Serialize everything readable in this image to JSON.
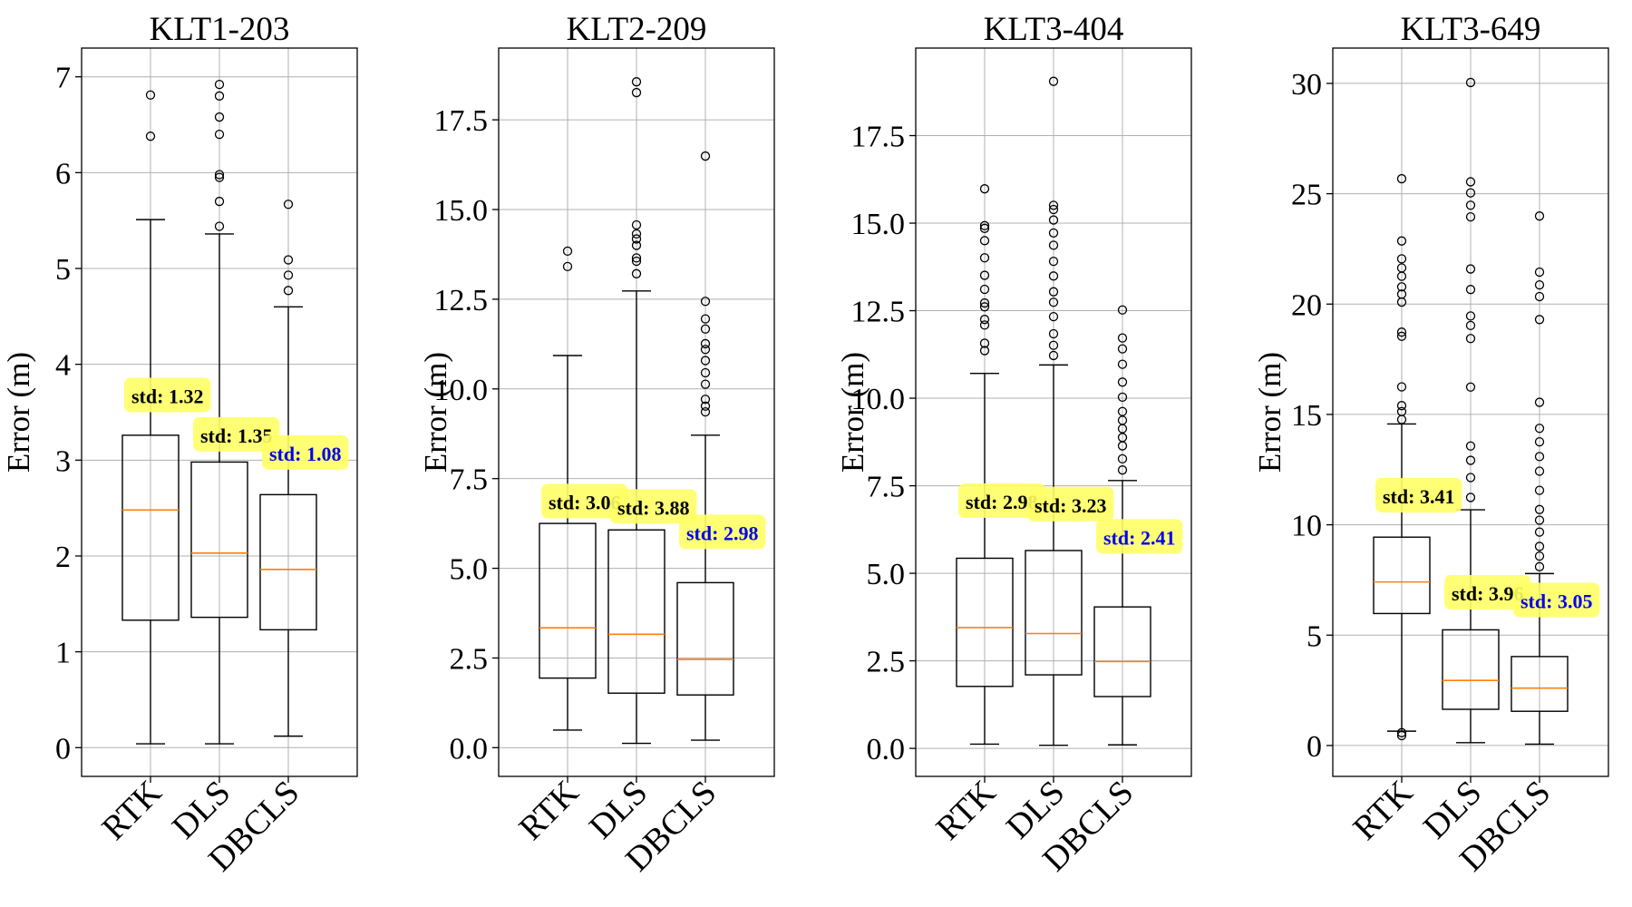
{
  "chart_data": [
    {
      "type": "box",
      "title": "KLT1-203",
      "ylabel": "Error (m)",
      "xlabel": "",
      "categories": [
        "RTK",
        "DLS",
        "DBCLS"
      ],
      "ylim": [
        -0.3,
        7.3
      ],
      "yticks": [
        0,
        1,
        2,
        3,
        4,
        5,
        6,
        7
      ],
      "ytick_labels": [
        "0",
        "1",
        "2",
        "3",
        "4",
        "5",
        "6",
        "7"
      ],
      "grid": true,
      "boxes": [
        {
          "name": "RTK",
          "whislo": 0.04,
          "q1": 1.33,
          "med": 2.48,
          "q3": 3.26,
          "whishi": 5.51,
          "fliers": [
            6.38,
            6.81
          ],
          "std_label": "std: 1.32",
          "std_at": 3.67,
          "std_color": "#000000"
        },
        {
          "name": "DLS",
          "whislo": 0.04,
          "q1": 1.36,
          "med": 2.03,
          "q3": 2.98,
          "whishi": 5.36,
          "fliers": [
            5.44,
            5.7,
            5.95,
            5.98,
            6.4,
            6.58,
            6.8,
            6.92
          ],
          "std_label": "std: 1.35",
          "std_at": 3.26,
          "std_color": "#000000"
        },
        {
          "name": "DBCLS",
          "whislo": 0.12,
          "q1": 1.23,
          "med": 1.86,
          "q3": 2.64,
          "whishi": 4.6,
          "fliers": [
            4.77,
            4.93,
            5.09,
            5.67
          ],
          "std_label": "std: 1.08",
          "std_at": 3.07,
          "std_color": "#0000ee"
        }
      ]
    },
    {
      "type": "box",
      "title": "KLT2-209",
      "ylabel": "Error (m)",
      "xlabel": "",
      "categories": [
        "RTK",
        "DLS",
        "DBCLS"
      ],
      "ylim": [
        -0.8,
        19.5
      ],
      "yticks": [
        0,
        2.5,
        5,
        7.5,
        10,
        12.5,
        15,
        17.5
      ],
      "ytick_labels": [
        "0.0",
        "2.5",
        "5.0",
        "7.5",
        "10.0",
        "12.5",
        "15.0",
        "17.5"
      ],
      "grid": true,
      "boxes": [
        {
          "name": "RTK",
          "whislo": 0.49,
          "q1": 1.94,
          "med": 3.34,
          "q3": 6.25,
          "whishi": 10.93,
          "fliers": [
            13.41,
            13.84
          ],
          "std_label": "std: 3.06",
          "std_at": 6.85,
          "std_color": "#000000"
        },
        {
          "name": "DLS",
          "whislo": 0.12,
          "q1": 1.52,
          "med": 3.16,
          "q3": 6.07,
          "whishi": 12.73,
          "fliers": [
            13.21,
            13.56,
            13.65,
            14.0,
            14.18,
            14.32,
            14.57,
            18.26,
            18.56
          ],
          "std_label": "std: 3.88",
          "std_at": 6.7,
          "std_color": "#000000"
        },
        {
          "name": "DBCLS",
          "whislo": 0.21,
          "q1": 1.47,
          "med": 2.46,
          "q3": 4.6,
          "whishi": 8.71,
          "fliers": [
            9.36,
            9.52,
            9.71,
            10.13,
            10.45,
            10.79,
            11.1,
            11.26,
            11.67,
            11.95,
            12.44,
            16.49
          ],
          "std_label": "std: 2.98",
          "std_at": 5.99,
          "std_color": "#0000ee"
        }
      ]
    },
    {
      "type": "box",
      "title": "KLT3-404",
      "ylabel": "Error (m)",
      "xlabel": "",
      "categories": [
        "RTK",
        "DLS",
        "DBCLS"
      ],
      "ylim": [
        -0.8,
        20.0
      ],
      "yticks": [
        0,
        2.5,
        5,
        7.5,
        10,
        12.5,
        15,
        17.5
      ],
      "ytick_labels": [
        "0.0",
        "2.5",
        "5.0",
        "7.5",
        "10.0",
        "12.5",
        "15.0",
        "17.5"
      ],
      "grid": true,
      "boxes": [
        {
          "name": "RTK",
          "whislo": 0.12,
          "q1": 1.77,
          "med": 3.45,
          "q3": 5.43,
          "whishi": 10.71,
          "fliers": [
            11.36,
            11.57,
            12.09,
            12.25,
            12.61,
            12.72,
            13.11,
            13.51,
            14.01,
            14.5,
            14.85,
            14.93,
            15.98
          ],
          "std_label": "std: 2.98",
          "std_at": 7.05,
          "std_color": "#000000"
        },
        {
          "name": "DLS",
          "whislo": 0.09,
          "q1": 2.1,
          "med": 3.28,
          "q3": 5.65,
          "whishi": 10.95,
          "fliers": [
            11.22,
            11.51,
            11.84,
            12.33,
            12.74,
            13.04,
            13.49,
            13.91,
            14.37,
            14.72,
            15.09,
            15.39,
            15.51,
            19.05
          ],
          "std_label": "std: 3.23",
          "std_at": 6.95,
          "std_color": "#000000"
        },
        {
          "name": "DBCLS",
          "whislo": 0.1,
          "q1": 1.48,
          "med": 2.48,
          "q3": 4.04,
          "whishi": 7.65,
          "fliers": [
            7.95,
            8.27,
            8.64,
            8.88,
            9.13,
            9.37,
            9.62,
            10.03,
            10.46,
            10.97,
            11.41,
            11.72,
            12.52
          ],
          "std_label": "std: 2.41",
          "std_at": 6.03,
          "std_color": "#0000ee"
        }
      ]
    },
    {
      "type": "box",
      "title": "KLT3-649",
      "ylabel": "Error (m)",
      "xlabel": "",
      "categories": [
        "RTK",
        "DLS",
        "DBCLS"
      ],
      "ylim": [
        -1.4,
        31.6
      ],
      "yticks": [
        0,
        5,
        10,
        15,
        20,
        25,
        30
      ],
      "ytick_labels": [
        "0",
        "5",
        "10",
        "15",
        "20",
        "25",
        "30"
      ],
      "grid": true,
      "boxes": [
        {
          "name": "RTK",
          "whislo": 0.65,
          "q1": 5.98,
          "med": 7.41,
          "q3": 9.44,
          "whishi": 14.57,
          "fliers": [
            0.45,
            0.58,
            14.77,
            15.13,
            15.4,
            16.25,
            18.54,
            18.73,
            20.09,
            20.45,
            20.78,
            21.26,
            21.64,
            22.05,
            22.86,
            25.68
          ],
          "std_label": "std: 3.41",
          "std_at": 11.3,
          "std_color": "#000000"
        },
        {
          "name": "DLS",
          "whislo": 0.13,
          "q1": 1.64,
          "med": 2.95,
          "q3": 5.24,
          "whishi": 10.68,
          "fliers": [
            11.24,
            12.14,
            12.92,
            13.57,
            16.24,
            18.44,
            19.03,
            19.46,
            20.66,
            21.59,
            23.95,
            24.48,
            25.04,
            25.54,
            30.04
          ],
          "std_label": "std: 3.96",
          "std_at": 6.9,
          "std_color": "#000000"
        },
        {
          "name": "DBCLS",
          "whislo": 0.06,
          "q1": 1.55,
          "med": 2.6,
          "q3": 4.03,
          "whishi": 7.79,
          "fliers": [
            8.1,
            8.58,
            9.02,
            9.67,
            10.21,
            10.69,
            11.56,
            12.43,
            13.09,
            13.76,
            14.37,
            15.55,
            19.3,
            20.34,
            20.87,
            21.45,
            23.99
          ],
          "std_label": "std: 3.05",
          "std_at": 6.55,
          "std_color": "#0000ee"
        }
      ]
    }
  ],
  "colors": {
    "median": "#ff7f0e",
    "box_edge": "#000000",
    "grid": "#b0b0b0",
    "std_box_fill": "#ffff66"
  }
}
